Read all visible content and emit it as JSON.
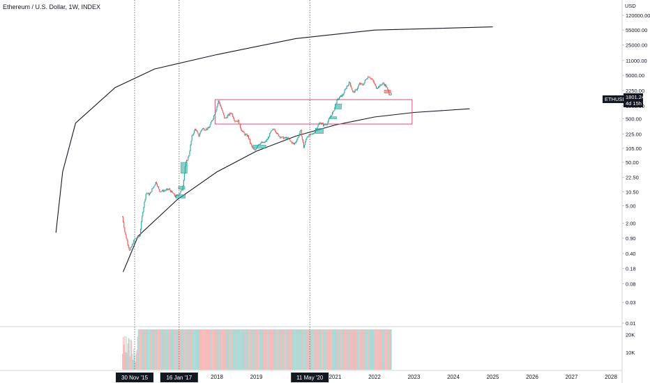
{
  "chart_title": "Ethereum / U.S. Dollar, 1W, INDEX",
  "currency": "USD",
  "price_tag": {
    "symbol": "ETHUSD",
    "price": "1801.24",
    "countdown": "4d 15h"
  },
  "colors": {
    "up": "#26a69a",
    "down": "#ef5350",
    "box": "#e04a7a",
    "curve": "#131722",
    "vline": "#555555"
  },
  "markers": [
    "30 Nov '15",
    "16 Jan '17",
    "11 May '20"
  ],
  "chart_data": {
    "type": "line",
    "scale": "log",
    "ylim": [
      0.01,
      120000
    ],
    "y_ticks": [
      "120000.00",
      "55000.00",
      "25000.00",
      "11000.00",
      "5000.00",
      "2250.00",
      "1000.00",
      "500.00",
      "225.00",
      "105.00",
      "50.00",
      "22.50",
      "10.50",
      "5.00",
      "2.00",
      "0.90",
      "0.40",
      "0.18",
      "0.08",
      "0.03",
      "0.01"
    ],
    "x_ticks": [
      "2018",
      "2019",
      "2021",
      "2022",
      "2023",
      "2024",
      "2025",
      "2026",
      "2027",
      "2028"
    ],
    "volume_ticks": [
      "20K",
      "10K"
    ],
    "series": [
      {
        "values": [
          [
            "2015-08-09",
            2.8
          ],
          [
            "2015-09-01",
            1.2
          ],
          [
            "2015-10-15",
            0.45
          ],
          [
            "2015-11-30",
            0.87
          ],
          [
            "2016-01-15",
            1.0
          ],
          [
            "2016-02-15",
            4
          ],
          [
            "2016-03-15",
            10
          ],
          [
            "2016-04-15",
            9
          ],
          [
            "2016-06-15",
            18
          ],
          [
            "2016-07-15",
            11
          ],
          [
            "2016-08-15",
            11
          ],
          [
            "2016-10-15",
            12
          ],
          [
            "2016-12-15",
            8
          ],
          [
            "2017-01-16",
            9.5
          ],
          [
            "2017-02-15",
            12
          ],
          [
            "2017-03-15",
            45
          ],
          [
            "2017-04-15",
            70
          ],
          [
            "2017-05-15",
            200
          ],
          [
            "2017-06-15",
            300
          ],
          [
            "2017-07-15",
            200
          ],
          [
            "2017-08-15",
            300
          ],
          [
            "2017-09-15",
            290
          ],
          [
            "2017-10-15",
            300
          ],
          [
            "2017-11-15",
            450
          ],
          [
            "2017-12-15",
            700
          ],
          [
            "2018-01-15",
            1300
          ],
          [
            "2018-02-15",
            800
          ],
          [
            "2018-03-15",
            500
          ],
          [
            "2018-04-15",
            600
          ],
          [
            "2018-05-15",
            700
          ],
          [
            "2018-06-15",
            450
          ],
          [
            "2018-07-15",
            450
          ],
          [
            "2018-08-15",
            280
          ],
          [
            "2018-09-15",
            220
          ],
          [
            "2018-10-15",
            200
          ],
          [
            "2018-11-15",
            120
          ],
          [
            "2018-12-15",
            90
          ],
          [
            "2019-01-15",
            130
          ],
          [
            "2019-02-15",
            140
          ],
          [
            "2019-03-15",
            140
          ],
          [
            "2019-04-15",
            170
          ],
          [
            "2019-05-15",
            250
          ],
          [
            "2019-06-15",
            300
          ],
          [
            "2019-07-15",
            220
          ],
          [
            "2019-08-15",
            190
          ],
          [
            "2019-09-15",
            180
          ],
          [
            "2019-10-15",
            180
          ],
          [
            "2019-11-15",
            150
          ],
          [
            "2019-12-15",
            130
          ],
          [
            "2020-01-15",
            170
          ],
          [
            "2020-02-15",
            270
          ],
          [
            "2020-03-15",
            110
          ],
          [
            "2020-04-15",
            200
          ],
          [
            "2020-05-11",
            210
          ],
          [
            "2020-06-15",
            230
          ],
          [
            "2020-07-15",
            320
          ],
          [
            "2020-08-15",
            420
          ],
          [
            "2020-09-15",
            360
          ],
          [
            "2020-10-15",
            380
          ],
          [
            "2020-11-15",
            550
          ],
          [
            "2020-12-15",
            730
          ],
          [
            "2021-01-15",
            1300
          ],
          [
            "2021-02-15",
            1600
          ],
          [
            "2021-03-15",
            1800
          ],
          [
            "2021-04-15",
            2700
          ],
          [
            "2021-05-15",
            3500
          ],
          [
            "2021-06-15",
            2000
          ],
          [
            "2021-07-15",
            2300
          ],
          [
            "2021-08-15",
            3200
          ],
          [
            "2021-09-15",
            3000
          ],
          [
            "2021-10-15",
            4200
          ],
          [
            "2021-11-08",
            4800
          ],
          [
            "2021-12-15",
            3800
          ],
          [
            "2022-01-15",
            2600
          ],
          [
            "2022-02-15",
            2800
          ],
          [
            "2022-03-15",
            3300
          ],
          [
            "2022-04-15",
            2900
          ],
          [
            "2022-05-15",
            1900
          ],
          [
            "2022-06-10",
            1801.24
          ]
        ]
      }
    ],
    "annotations": {
      "box": {
        "x": [
          "2017-12-15",
          "2022-12-15"
        ],
        "y": [
          380,
          1380
        ]
      },
      "upper_curve": [
        [
          "2013-12-01",
          1.2
        ],
        [
          "2014-02-01",
          30
        ],
        [
          "2014-06-01",
          400
        ],
        [
          "2015-06-01",
          2600
        ],
        [
          "2016-06-01",
          7000
        ],
        [
          "2018-01-01",
          15000
        ],
        [
          "2020-01-01",
          35000
        ],
        [
          "2022-01-01",
          55000
        ],
        [
          "2025-01-01",
          65000
        ]
      ],
      "lower_curve": [
        [
          "2015-08-15",
          0.15
        ],
        [
          "2016-01-01",
          1.0
        ],
        [
          "2017-01-01",
          7
        ],
        [
          "2018-01-01",
          30
        ],
        [
          "2019-01-01",
          90
        ],
        [
          "2020-01-01",
          200
        ],
        [
          "2021-01-01",
          360
        ],
        [
          "2022-01-01",
          550
        ],
        [
          "2023-01-01",
          700
        ],
        [
          "2024-06-01",
          850
        ]
      ]
    }
  }
}
